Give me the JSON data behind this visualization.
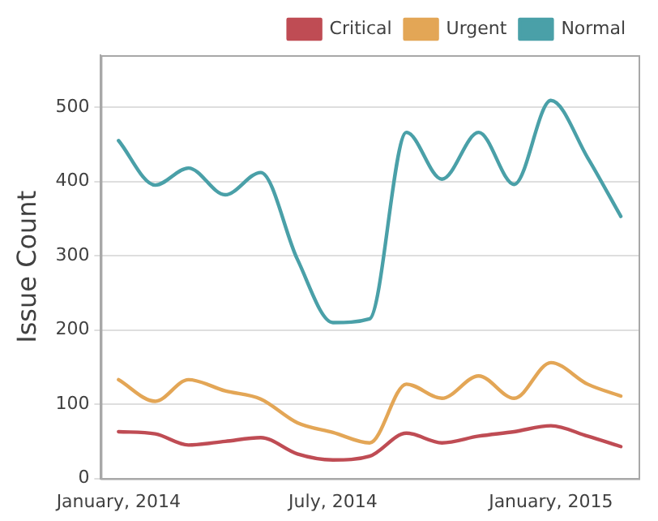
{
  "chart_data": {
    "type": "line",
    "ylabel": "Issue Count",
    "x": [
      "2014-01",
      "2014-02",
      "2014-03",
      "2014-04",
      "2014-05",
      "2014-06",
      "2014-07",
      "2014-08",
      "2014-09",
      "2014-10",
      "2014-11",
      "2014-12",
      "2015-01",
      "2015-02",
      "2015-03"
    ],
    "series": [
      {
        "name": "Critical",
        "color": "#bf4c54",
        "values": [
          63,
          60,
          45,
          50,
          55,
          33,
          25,
          30,
          61,
          48,
          57,
          63,
          71,
          57,
          43
        ]
      },
      {
        "name": "Urgent",
        "color": "#e3a656",
        "values": [
          133,
          104,
          133,
          118,
          107,
          75,
          62,
          48,
          127,
          108,
          138,
          108,
          156,
          127,
          111
        ]
      },
      {
        "name": "Normal",
        "color": "#4aa0a8",
        "values": [
          455,
          395,
          418,
          382,
          412,
          295,
          210,
          215,
          466,
          403,
          466,
          396,
          509,
          432,
          353
        ]
      }
    ],
    "xlim": [
      "2013-12-17",
      "2015-03-16"
    ],
    "xticks": [
      {
        "value": "2014-01",
        "label": "January, 2014"
      },
      {
        "value": "2014-07",
        "label": "July, 2014"
      },
      {
        "value": "2015-01",
        "label": "January, 2015"
      }
    ],
    "ylim": [
      0,
      570
    ],
    "yticks": [
      0,
      100,
      200,
      300,
      400,
      500
    ],
    "grid": "y",
    "legend": "top right",
    "marker": "none",
    "line_style": "solid"
  }
}
